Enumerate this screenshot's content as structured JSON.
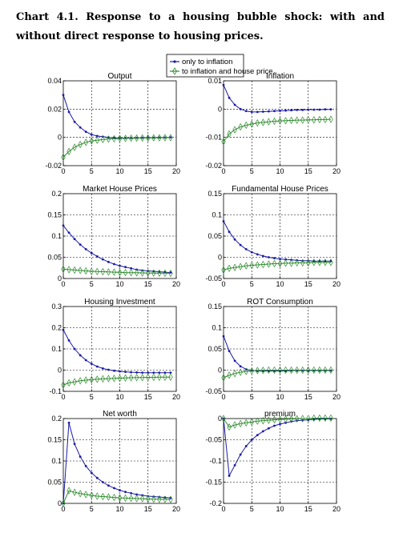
{
  "caption": "Chart 4.1. Response to a housing bubble shock: with and without direct response to housing prices.",
  "legend": {
    "position": "top-center",
    "items": [
      {
        "label": "only to inflation",
        "color": "#1a1aa6",
        "marker": "dot"
      },
      {
        "label": "to inflation and house price",
        "color": "#2e8b2e",
        "marker": "diamond"
      }
    ]
  },
  "chart_data": [
    {
      "type": "line",
      "title": "Output",
      "x": [
        0,
        1,
        2,
        3,
        4,
        5,
        6,
        7,
        8,
        9,
        10,
        11,
        12,
        13,
        14,
        15,
        16,
        17,
        18,
        19
      ],
      "xlim": [
        0,
        20
      ],
      "ylim": [
        -0.02,
        0.04
      ],
      "yticks": [
        -0.02,
        0,
        0.02,
        0.04
      ],
      "ytick_labels": [
        "-0.02",
        "0",
        "0.02",
        "0.04"
      ],
      "xticks": [
        0,
        5,
        10,
        15,
        20
      ],
      "grid": true,
      "series": [
        {
          "name": "only to inflation",
          "values": [
            0.03,
            0.018,
            0.011,
            0.007,
            0.004,
            0.002,
            0.001,
            0.0005,
            0,
            -0.0003,
            -0.0005,
            -0.0005,
            -0.0005,
            -0.0004,
            -0.0003,
            -0.0002,
            -0.0002,
            -0.0001,
            -0.0001,
            0
          ]
        },
        {
          "name": "to inflation and house price",
          "values": [
            -0.014,
            -0.01,
            -0.007,
            -0.005,
            -0.0035,
            -0.0025,
            -0.002,
            -0.0015,
            -0.0012,
            -0.001,
            -0.0008,
            -0.0007,
            -0.0006,
            -0.0005,
            -0.0004,
            -0.0004,
            -0.0003,
            -0.0003,
            -0.0002,
            -0.0002
          ]
        }
      ]
    },
    {
      "type": "line",
      "title": "Inflation",
      "x": [
        0,
        1,
        2,
        3,
        4,
        5,
        6,
        7,
        8,
        9,
        10,
        11,
        12,
        13,
        14,
        15,
        16,
        17,
        18,
        19
      ],
      "xlim": [
        0,
        20
      ],
      "ylim": [
        -0.02,
        0.01
      ],
      "yticks": [
        -0.02,
        -0.01,
        0,
        0.01
      ],
      "ytick_labels": [
        "-0.02",
        "-0.01",
        "0",
        "0.01"
      ],
      "xticks": [
        0,
        5,
        10,
        15,
        20
      ],
      "grid": true,
      "series": [
        {
          "name": "only to inflation",
          "values": [
            0.0085,
            0.004,
            0.0015,
            0,
            -0.0007,
            -0.001,
            -0.001,
            -0.0009,
            -0.0008,
            -0.0007,
            -0.0006,
            -0.0005,
            -0.0004,
            -0.0003,
            -0.0003,
            -0.0002,
            -0.0002,
            -0.0002,
            -0.0001,
            -0.0001
          ]
        },
        {
          "name": "to inflation and house price",
          "values": [
            -0.0115,
            -0.0088,
            -0.0073,
            -0.0063,
            -0.0057,
            -0.0053,
            -0.0049,
            -0.0047,
            -0.0045,
            -0.0043,
            -0.0042,
            -0.0041,
            -0.004,
            -0.0039,
            -0.0039,
            -0.0038,
            -0.0038,
            -0.0037,
            -0.0037,
            -0.0036
          ]
        }
      ]
    },
    {
      "type": "line",
      "title": "Market House Prices",
      "x": [
        0,
        1,
        2,
        3,
        4,
        5,
        6,
        7,
        8,
        9,
        10,
        11,
        12,
        13,
        14,
        15,
        16,
        17,
        18,
        19
      ],
      "xlim": [
        0,
        20
      ],
      "ylim": [
        0,
        0.2
      ],
      "yticks": [
        0,
        0.05,
        0.1,
        0.15,
        0.2
      ],
      "ytick_labels": [
        "0",
        "0.05",
        "0.1",
        "0.15",
        "0.2"
      ],
      "xticks": [
        0,
        5,
        10,
        15,
        20
      ],
      "grid": true,
      "series": [
        {
          "name": "only to inflation",
          "values": [
            0.125,
            0.108,
            0.093,
            0.08,
            0.069,
            0.06,
            0.052,
            0.045,
            0.039,
            0.034,
            0.03,
            0.027,
            0.024,
            0.021,
            0.019,
            0.018,
            0.017,
            0.016,
            0.015,
            0.014
          ]
        },
        {
          "name": "to inflation and house price",
          "values": [
            0.022,
            0.021,
            0.02,
            0.019,
            0.018,
            0.017,
            0.0165,
            0.016,
            0.0155,
            0.015,
            0.0145,
            0.014,
            0.0138,
            0.0135,
            0.0132,
            0.013,
            0.0128,
            0.0126,
            0.0124,
            0.0122
          ]
        }
      ]
    },
    {
      "type": "line",
      "title": "Fundamental House Prices",
      "x": [
        0,
        1,
        2,
        3,
        4,
        5,
        6,
        7,
        8,
        9,
        10,
        11,
        12,
        13,
        14,
        15,
        16,
        17,
        18,
        19
      ],
      "xlim": [
        0,
        20
      ],
      "ylim": [
        -0.05,
        0.15
      ],
      "yticks": [
        -0.05,
        0,
        0.05,
        0.1,
        0.15
      ],
      "ytick_labels": [
        "-0.05",
        "0",
        "0.05",
        "0.1",
        "0.15"
      ],
      "xticks": [
        0,
        5,
        10,
        15,
        20
      ],
      "grid": true,
      "series": [
        {
          "name": "only to inflation",
          "values": [
            0.085,
            0.06,
            0.042,
            0.029,
            0.019,
            0.012,
            0.007,
            0.003,
            0,
            -0.002,
            -0.004,
            -0.005,
            -0.006,
            -0.007,
            -0.008,
            -0.008,
            -0.009,
            -0.009,
            -0.009,
            -0.009
          ]
        },
        {
          "name": "to inflation and house price",
          "values": [
            -0.03,
            -0.026,
            -0.024,
            -0.022,
            -0.02,
            -0.019,
            -0.018,
            -0.017,
            -0.016,
            -0.015,
            -0.015,
            -0.014,
            -0.014,
            -0.013,
            -0.013,
            -0.013,
            -0.012,
            -0.012,
            -0.012,
            -0.012
          ]
        }
      ]
    },
    {
      "type": "line",
      "title": "Housing Investment",
      "x": [
        0,
        1,
        2,
        3,
        4,
        5,
        6,
        7,
        8,
        9,
        10,
        11,
        12,
        13,
        14,
        15,
        16,
        17,
        18,
        19
      ],
      "xlim": [
        0,
        20
      ],
      "ylim": [
        -0.1,
        0.3
      ],
      "yticks": [
        -0.1,
        0,
        0.1,
        0.2,
        0.3
      ],
      "ytick_labels": [
        "-0.1",
        "0",
        "0.1",
        "0.2",
        "0.3"
      ],
      "xticks": [
        0,
        5,
        10,
        15,
        20
      ],
      "grid": true,
      "series": [
        {
          "name": "only to inflation",
          "values": [
            0.19,
            0.14,
            0.1,
            0.07,
            0.047,
            0.03,
            0.017,
            0.008,
            0.002,
            -0.003,
            -0.006,
            -0.008,
            -0.01,
            -0.011,
            -0.012,
            -0.012,
            -0.012,
            -0.012,
            -0.012,
            -0.012
          ]
        },
        {
          "name": "to inflation and house price",
          "values": [
            -0.07,
            -0.06,
            -0.055,
            -0.05,
            -0.047,
            -0.045,
            -0.043,
            -0.041,
            -0.04,
            -0.039,
            -0.038,
            -0.037,
            -0.036,
            -0.035,
            -0.035,
            -0.034,
            -0.034,
            -0.033,
            -0.033,
            -0.033
          ]
        }
      ]
    },
    {
      "type": "line",
      "title": "ROT Consumption",
      "x": [
        0,
        1,
        2,
        3,
        4,
        5,
        6,
        7,
        8,
        9,
        10,
        11,
        12,
        13,
        14,
        15,
        16,
        17,
        18,
        19
      ],
      "xlim": [
        0,
        20
      ],
      "ylim": [
        -0.05,
        0.15
      ],
      "yticks": [
        -0.05,
        0,
        0.05,
        0.1,
        0.15
      ],
      "ytick_labels": [
        "-0.05",
        "0",
        "0.05",
        "0.1",
        "0.15"
      ],
      "xticks": [
        0,
        5,
        10,
        15,
        20
      ],
      "grid": true,
      "series": [
        {
          "name": "only to inflation",
          "values": [
            0.08,
            0.045,
            0.022,
            0.009,
            0.002,
            -0.001,
            -0.002,
            -0.002,
            -0.002,
            -0.002,
            -0.002,
            -0.002,
            -0.001,
            -0.001,
            -0.001,
            -0.001,
            -0.001,
            -0.001,
            -0.001,
            -0.001
          ]
        },
        {
          "name": "to inflation and house price",
          "values": [
            -0.018,
            -0.012,
            -0.008,
            -0.005,
            -0.003,
            -0.002,
            -0.001,
            -0.0005,
            0,
            0,
            0,
            0,
            0,
            0,
            0,
            0,
            0,
            0,
            0,
            0
          ]
        }
      ]
    },
    {
      "type": "line",
      "title": "Net worth",
      "x": [
        0,
        1,
        2,
        3,
        4,
        5,
        6,
        7,
        8,
        9,
        10,
        11,
        12,
        13,
        14,
        15,
        16,
        17,
        18,
        19
      ],
      "xlim": [
        0,
        20
      ],
      "ylim": [
        0,
        0.2
      ],
      "yticks": [
        0,
        0.05,
        0.1,
        0.15,
        0.2
      ],
      "ytick_labels": [
        "0",
        "0.05",
        "0.1",
        "0.15",
        "0.2"
      ],
      "xticks": [
        0,
        5,
        10,
        15,
        20
      ],
      "grid": true,
      "series": [
        {
          "name": "only to inflation",
          "values": [
            0,
            0.19,
            0.14,
            0.11,
            0.088,
            0.072,
            0.06,
            0.05,
            0.042,
            0.036,
            0.031,
            0.027,
            0.024,
            0.021,
            0.019,
            0.017,
            0.016,
            0.015,
            0.014,
            0.013
          ]
        },
        {
          "name": "to inflation and house price",
          "values": [
            0,
            0.03,
            0.026,
            0.023,
            0.021,
            0.019,
            0.017,
            0.016,
            0.015,
            0.014,
            0.013,
            0.0125,
            0.012,
            0.0115,
            0.011,
            0.0105,
            0.01,
            0.0098,
            0.0096,
            0.0094
          ]
        }
      ]
    },
    {
      "type": "line",
      "title": "premium",
      "x": [
        0,
        1,
        2,
        3,
        4,
        5,
        6,
        7,
        8,
        9,
        10,
        11,
        12,
        13,
        14,
        15,
        16,
        17,
        18,
        19
      ],
      "xlim": [
        0,
        20
      ],
      "ylim": [
        -0.2,
        0
      ],
      "yticks": [
        -0.2,
        -0.15,
        -0.1,
        -0.05,
        0
      ],
      "ytick_labels": [
        "-0.2",
        "-0.15",
        "-0.1",
        "-0.05",
        "0"
      ],
      "xticks": [
        0,
        5,
        10,
        15,
        20
      ],
      "grid": true,
      "series": [
        {
          "name": "only to inflation",
          "values": [
            0,
            -0.135,
            -0.11,
            -0.085,
            -0.065,
            -0.05,
            -0.039,
            -0.03,
            -0.023,
            -0.017,
            -0.013,
            -0.01,
            -0.007,
            -0.005,
            -0.004,
            -0.003,
            -0.002,
            -0.001,
            -0.001,
            -0.0005
          ]
        },
        {
          "name": "to inflation and house price",
          "values": [
            0,
            -0.02,
            -0.015,
            -0.012,
            -0.01,
            -0.008,
            -0.006,
            -0.005,
            -0.004,
            -0.003,
            -0.002,
            -0.0015,
            -0.001,
            -0.0005,
            0,
            0,
            0.001,
            0.001,
            0.001,
            0.001
          ]
        }
      ]
    }
  ]
}
